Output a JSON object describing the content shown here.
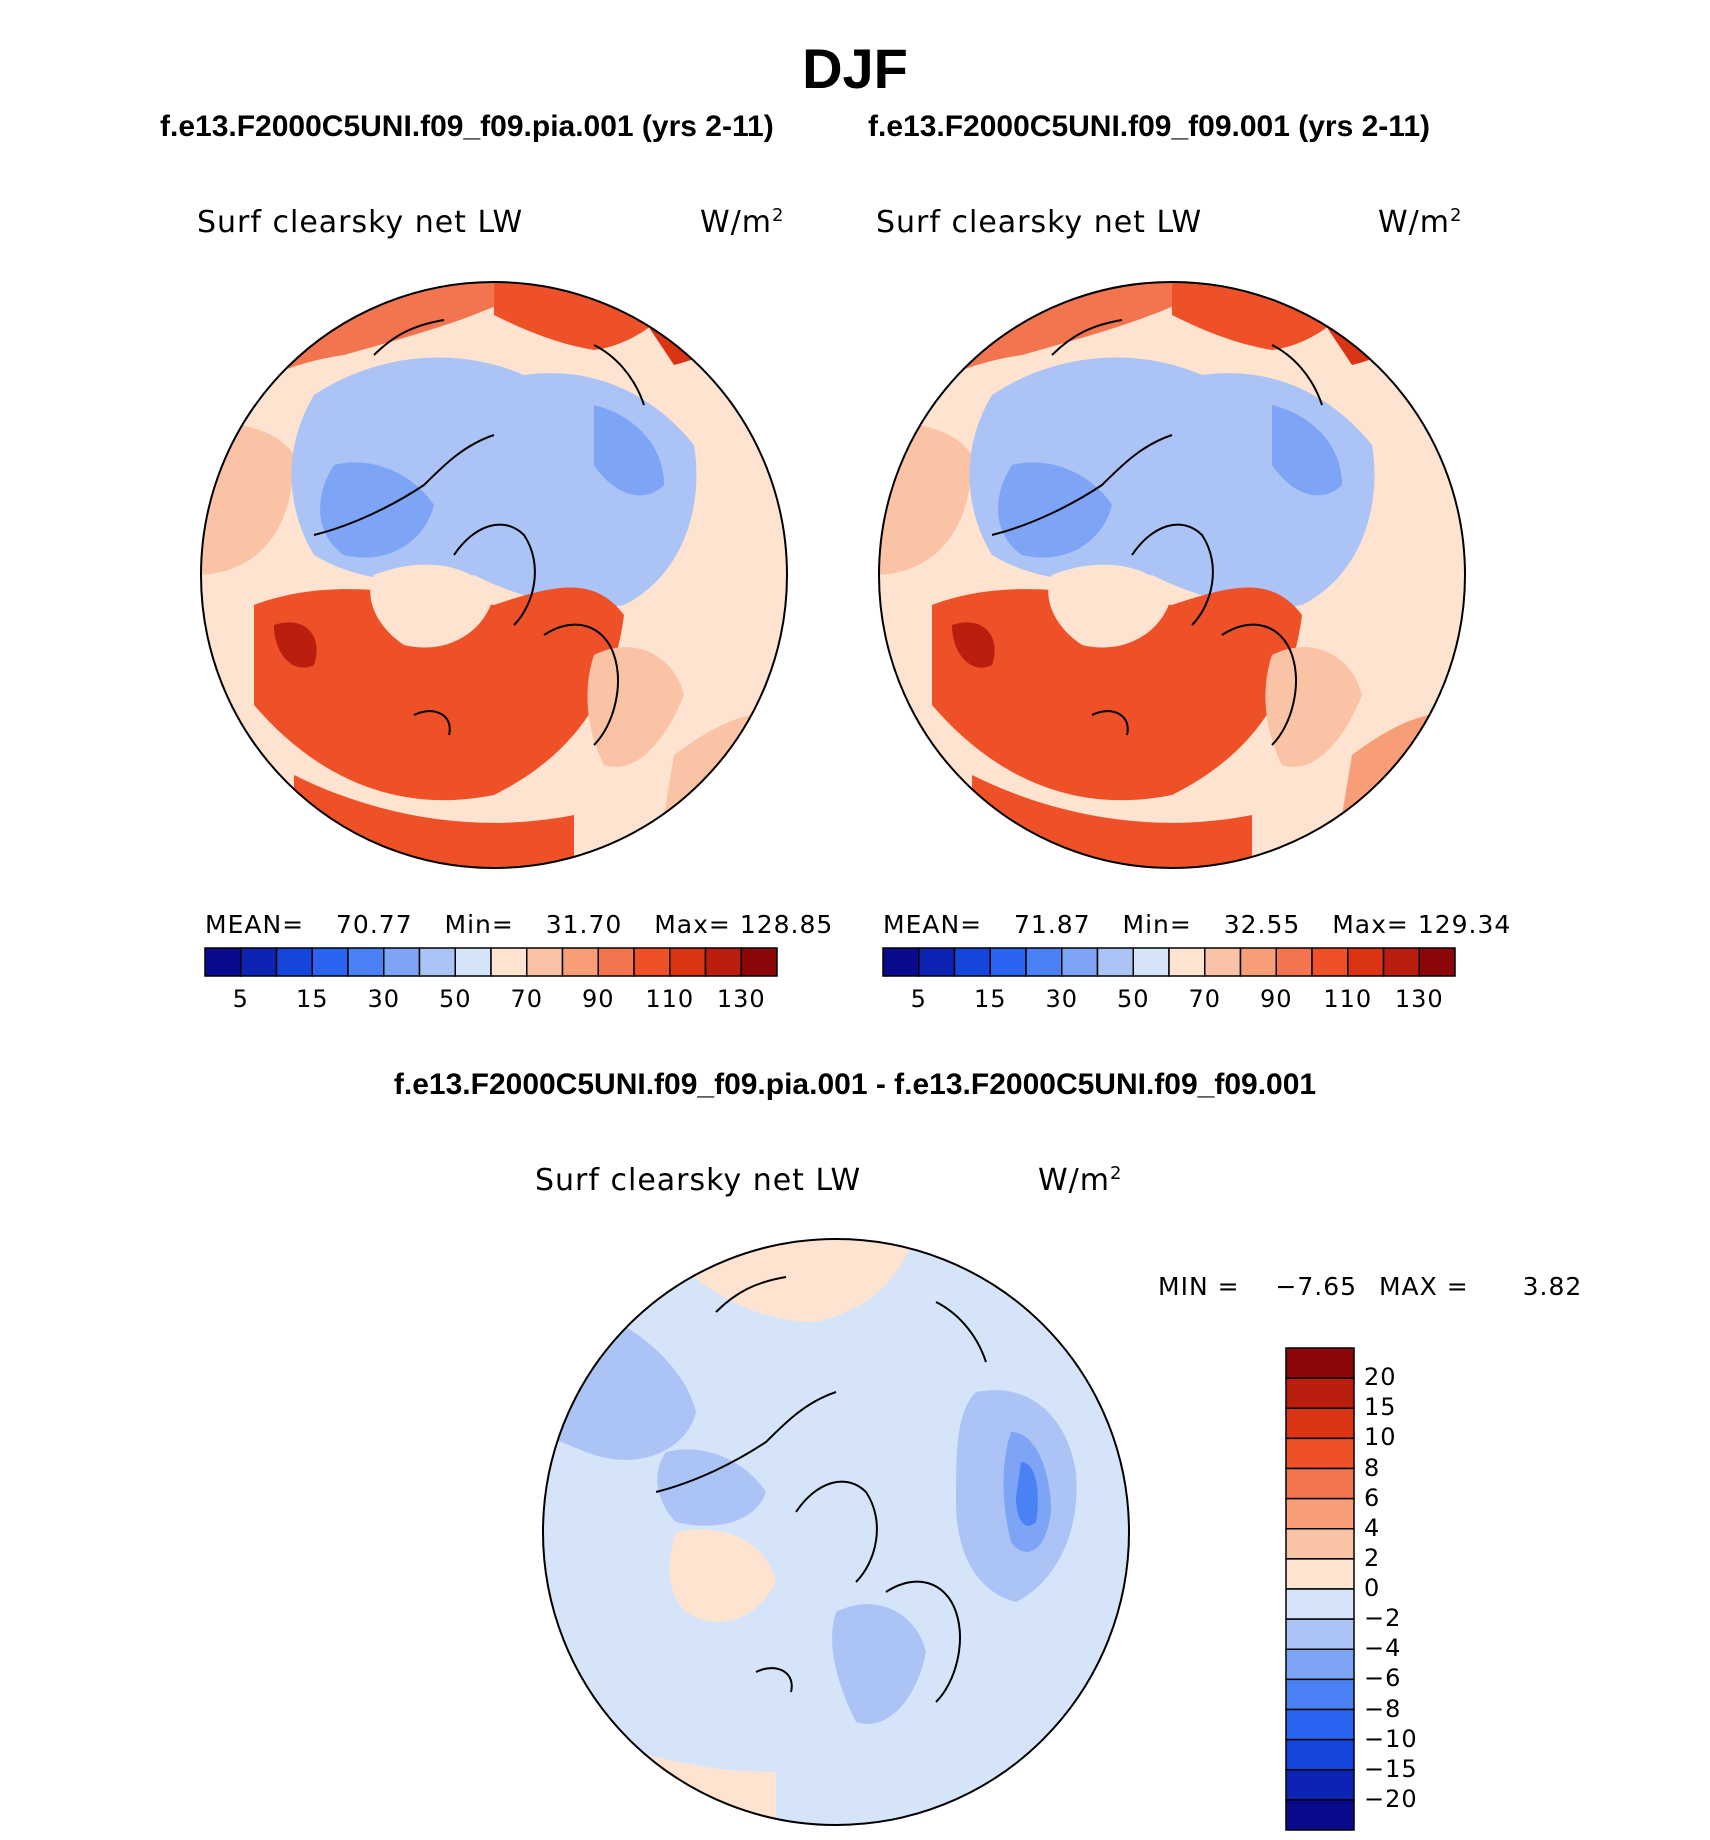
{
  "season": "DJF",
  "panels": [
    {
      "title": "f.e13.F2000C5UNI.f09_f09.pia.001 (yrs 2-11)",
      "left_label": "Surf clearsky net LW",
      "units": "W/m",
      "units_sup": "2",
      "stats": {
        "mean_label": "MEAN=",
        "mean": "70.77",
        "min_label": "Min=",
        "min": "31.70",
        "max_label": "Max=",
        "max": "128.85"
      }
    },
    {
      "title": "f.e13.F2000C5UNI.f09_f09.001 (yrs 2-11)",
      "left_label": "Surf clearsky net LW",
      "units": "W/m",
      "units_sup": "2",
      "stats": {
        "mean_label": "MEAN=",
        "mean": "71.87",
        "min_label": "Min=",
        "min": "32.55",
        "max_label": "Max=",
        "max": "129.34"
      }
    }
  ],
  "colorbar_horizontal": {
    "colors": [
      "#0a0a8c",
      "#0d23b4",
      "#1446dc",
      "#2a64f0",
      "#4a82f5",
      "#7ea4f5",
      "#abc4f5",
      "#d6e4fa",
      "#fde3d0",
      "#fbc3a6",
      "#f79e78",
      "#f37550",
      "#ee5028",
      "#da3414",
      "#b91e0f",
      "#8c0808"
    ],
    "tick_labels": [
      "5",
      "15",
      "30",
      "50",
      "70",
      "90",
      "110",
      "130"
    ]
  },
  "difference": {
    "title": "f.e13.F2000C5UNI.f09_f09.pia.001 - f.e13.F2000C5UNI.f09_f09.001",
    "left_label": "Surf clearsky net LW",
    "units": "W/m",
    "units_sup": "2",
    "min_label": "MIN =",
    "min": "−7.65",
    "max_label": "MAX =",
    "max": "3.82",
    "colorbar": {
      "colors": [
        "#8c0808",
        "#b91e0f",
        "#da3414",
        "#ee5028",
        "#f37550",
        "#f79e78",
        "#fbc3a6",
        "#fde3d0",
        "#d6e4fa",
        "#abc4f5",
        "#7ea4f5",
        "#4a82f5",
        "#2a64f0",
        "#1446dc",
        "#0d23b4",
        "#0a0a8c"
      ],
      "tick_labels": [
        "20",
        "15",
        "10",
        "8",
        "6",
        "4",
        "2",
        "0",
        "−2",
        "−4",
        "−6",
        "−8",
        "−10",
        "−15",
        "−20"
      ]
    }
  },
  "chart_data": [
    {
      "type": "heatmap",
      "title": "f.e13.F2000C5UNI.f09_f09.pia.001 (yrs 2-11)",
      "variable": "Surf clearsky net LW",
      "units": "W/m2",
      "projection": "north polar stereographic",
      "mean": 70.77,
      "min": 31.7,
      "max": 128.85,
      "levels": [
        5,
        10,
        15,
        20,
        30,
        40,
        50,
        60,
        70,
        80,
        90,
        100,
        110,
        120,
        130
      ]
    },
    {
      "type": "heatmap",
      "title": "f.e13.F2000C5UNI.f09_f09.001 (yrs 2-11)",
      "variable": "Surf clearsky net LW",
      "units": "W/m2",
      "projection": "north polar stereographic",
      "mean": 71.87,
      "min": 32.55,
      "max": 129.34,
      "levels": [
        5,
        10,
        15,
        20,
        30,
        40,
        50,
        60,
        70,
        80,
        90,
        100,
        110,
        120,
        130
      ]
    },
    {
      "type": "heatmap",
      "title": "f.e13.F2000C5UNI.f09_f09.pia.001 - f.e13.F2000C5UNI.f09_f09.001",
      "variable": "Surf clearsky net LW",
      "units": "W/m2",
      "projection": "north polar stereographic",
      "min": -7.65,
      "max": 3.82,
      "levels": [
        -20,
        -15,
        -10,
        -8,
        -6,
        -4,
        -2,
        0,
        2,
        4,
        6,
        8,
        10,
        15,
        20
      ]
    }
  ]
}
